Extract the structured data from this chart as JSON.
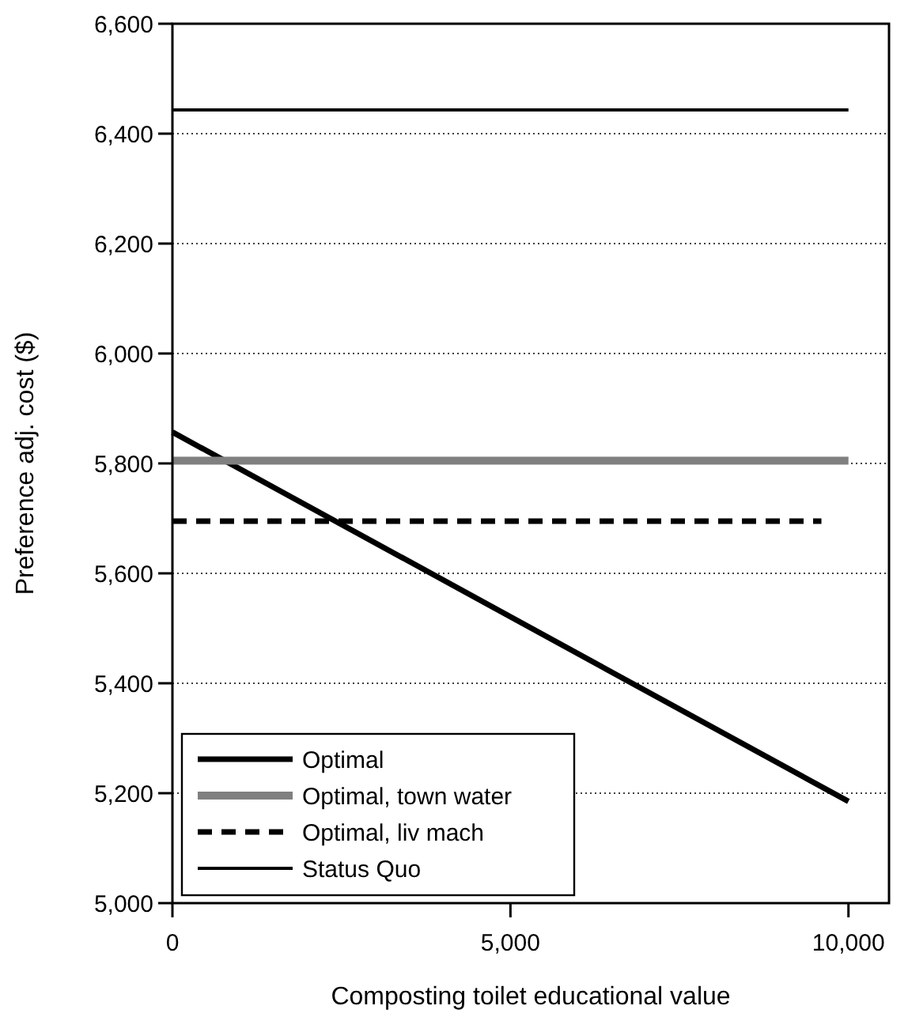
{
  "chart_data": {
    "type": "line",
    "xlabel": "Composting toilet educational value",
    "ylabel": "Preference adj. cost ($)",
    "xlim": [
      0,
      10600
    ],
    "ylim": [
      5000,
      6600
    ],
    "xticks": [
      {
        "value": 0,
        "label": "0"
      },
      {
        "value": 5000,
        "label": "5,000"
      },
      {
        "value": 10000,
        "label": "10,000"
      }
    ],
    "yticks": [
      {
        "value": 5000,
        "label": "5,000"
      },
      {
        "value": 5200,
        "label": "5,200"
      },
      {
        "value": 5400,
        "label": "5,400"
      },
      {
        "value": 5600,
        "label": "5,600"
      },
      {
        "value": 5800,
        "label": "5,800"
      },
      {
        "value": 6000,
        "label": "6,000"
      },
      {
        "value": 6200,
        "label": "6,200"
      },
      {
        "value": 6400,
        "label": "6,400"
      },
      {
        "value": 6600,
        "label": "6,600"
      }
    ],
    "grid": "y",
    "legend": "bottom left",
    "marker": "none",
    "series": [
      {
        "name": "Optimal",
        "color": "#000000",
        "x": [
          0,
          10000
        ],
        "values": [
          5857,
          5185
        ],
        "line_style": "solid"
      },
      {
        "name": "Optimal, town water",
        "color": "#808080",
        "x": [
          0,
          10000
        ],
        "values": [
          5805,
          5805
        ],
        "line_style": "solid"
      },
      {
        "name": "Optimal, liv mach",
        "color": "#000000",
        "x": [
          0,
          9600
        ],
        "values": [
          5695,
          5695
        ],
        "line_style": "dashed"
      },
      {
        "name": "Status Quo",
        "color": "#000000",
        "x": [
          0,
          10000
        ],
        "values": [
          6443,
          6443
        ],
        "line_style": "solid"
      }
    ]
  }
}
